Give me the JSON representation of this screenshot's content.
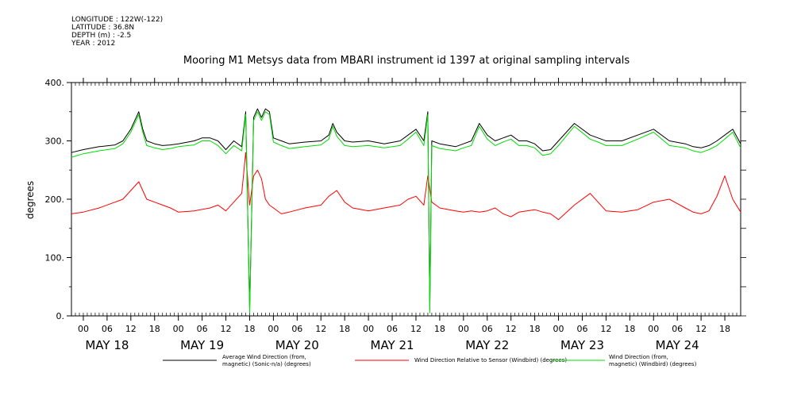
{
  "header": {
    "lines": [
      "LONGITUDE : 122W(-122)",
      "LATITUDE : 36.8N",
      "DEPTH (m) : -2.5",
      "YEAR : 2012"
    ]
  },
  "chart_data": {
    "type": "line",
    "title": "Mooring M1 Metsys data from MBARI instrument id 1397 at original sampling intervals",
    "ylabel": "degrees",
    "xlabel": "",
    "ylim": [
      0,
      400
    ],
    "yticks": [
      "0.",
      "100.",
      "200.",
      "300.",
      "400."
    ],
    "ytick_values": [
      0,
      100,
      200,
      300,
      400
    ],
    "xtick_labels": [
      "00",
      "06",
      "12",
      "18",
      "00",
      "06",
      "12",
      "18",
      "00",
      "06",
      "12",
      "18",
      "00",
      "06",
      "12",
      "18",
      "00",
      "06",
      "12",
      "18",
      "00",
      "06",
      "12",
      "18",
      "00",
      "06",
      "12",
      "18"
    ],
    "day_labels": [
      "MAY 18",
      "MAY 19",
      "MAY 20",
      "MAY 21",
      "MAY 22",
      "MAY 23",
      "MAY 24"
    ],
    "x_units": "hours since 2012-05-18 00:00",
    "xlim": [
      -3,
      166
    ],
    "grid": false,
    "legend_position": "bottom",
    "series": [
      {
        "name": "Average Wind Direction (from, magnetic) (Sonic-n/a) (degrees)",
        "legend_lines": [
          "Average Wind Direction (from,",
          "magnetic) (Sonic-n/a) (degrees)"
        ],
        "color": "#000000",
        "x": [
          -3,
          0,
          4,
          8,
          10,
          12,
          14,
          15,
          16,
          18,
          20,
          22,
          24,
          28,
          30,
          32,
          34,
          36,
          38,
          40,
          41,
          42,
          43,
          44,
          45,
          46,
          47,
          48,
          50,
          52,
          56,
          60,
          62,
          63,
          64,
          66,
          68,
          72,
          76,
          80,
          82,
          84,
          86,
          87,
          87.5,
          88,
          90,
          94,
          96,
          98,
          100,
          102,
          104,
          106,
          108,
          110,
          112,
          114,
          116,
          118,
          120,
          124,
          128,
          130,
          132,
          136,
          140,
          144,
          148,
          152,
          154,
          156,
          158,
          160,
          162,
          164,
          166
        ],
        "y": [
          280,
          285,
          290,
          293,
          300,
          320,
          350,
          320,
          300,
          295,
          292,
          293,
          295,
          300,
          305,
          305,
          300,
          285,
          300,
          290,
          350,
          10,
          340,
          355,
          340,
          355,
          350,
          305,
          300,
          295,
          298,
          300,
          310,
          330,
          315,
          300,
          298,
          300,
          295,
          300,
          310,
          320,
          300,
          350,
          10,
          300,
          295,
          290,
          295,
          300,
          330,
          310,
          300,
          305,
          310,
          300,
          300,
          295,
          283,
          285,
          300,
          330,
          310,
          305,
          300,
          300,
          310,
          320,
          300,
          295,
          290,
          288,
          292,
          300,
          310,
          320,
          295
        ]
      },
      {
        "name": "Wind Direction Relative to Sensor (Windbird) (degrees)",
        "legend_lines": [
          "Wind Direction Relative to Sensor (Windbird) (degrees)"
        ],
        "color": "#ff0000",
        "x": [
          -3,
          0,
          4,
          8,
          10,
          12,
          14,
          16,
          18,
          20,
          22,
          24,
          28,
          32,
          34,
          36,
          38,
          40,
          41,
          42,
          43,
          44,
          45,
          46,
          47,
          48,
          50,
          52,
          56,
          60,
          62,
          64,
          66,
          68,
          72,
          76,
          80,
          82,
          84,
          86,
          87,
          88,
          90,
          94,
          96,
          98,
          100,
          102,
          104,
          106,
          108,
          110,
          112,
          114,
          116,
          118,
          120,
          124,
          128,
          130,
          132,
          136,
          140,
          144,
          148,
          152,
          154,
          156,
          158,
          160,
          162,
          164,
          166
        ],
        "y": [
          175,
          178,
          185,
          195,
          200,
          215,
          230,
          200,
          195,
          190,
          185,
          178,
          180,
          185,
          190,
          180,
          195,
          210,
          280,
          190,
          240,
          250,
          235,
          200,
          190,
          185,
          175,
          178,
          185,
          190,
          205,
          215,
          195,
          185,
          180,
          185,
          190,
          200,
          205,
          190,
          240,
          195,
          185,
          180,
          178,
          180,
          178,
          180,
          185,
          175,
          170,
          178,
          180,
          182,
          178,
          175,
          165,
          190,
          210,
          195,
          180,
          178,
          182,
          195,
          200,
          185,
          178,
          175,
          180,
          205,
          240,
          200,
          178
        ]
      },
      {
        "name": "Wind Direction (from, magnetic) (Windbird) (degrees)",
        "legend_lines": [
          "Wind Direction (from,",
          "magnetic) (Windbird) (degrees)"
        ],
        "color": "#00dd00",
        "x": [
          -3,
          0,
          4,
          8,
          10,
          12,
          14,
          15,
          16,
          18,
          20,
          22,
          24,
          28,
          30,
          32,
          34,
          36,
          38,
          40,
          41,
          42,
          43,
          44,
          45,
          46,
          47,
          48,
          50,
          52,
          56,
          60,
          62,
          63,
          64,
          66,
          68,
          72,
          76,
          80,
          82,
          84,
          86,
          87,
          87.5,
          88,
          90,
          94,
          96,
          98,
          100,
          102,
          104,
          106,
          108,
          110,
          112,
          114,
          116,
          118,
          120,
          124,
          128,
          130,
          132,
          136,
          140,
          144,
          148,
          152,
          154,
          156,
          158,
          160,
          162,
          164,
          166
        ],
        "y": [
          272,
          278,
          283,
          287,
          295,
          315,
          345,
          315,
          292,
          288,
          285,
          287,
          290,
          293,
          300,
          300,
          292,
          278,
          292,
          283,
          345,
          5,
          335,
          350,
          335,
          350,
          345,
          298,
          292,
          287,
          290,
          293,
          303,
          325,
          308,
          292,
          290,
          292,
          288,
          292,
          303,
          315,
          292,
          345,
          5,
          292,
          287,
          283,
          288,
          292,
          325,
          303,
          292,
          298,
          303,
          292,
          292,
          288,
          275,
          278,
          292,
          325,
          303,
          298,
          292,
          292,
          303,
          315,
          292,
          288,
          283,
          280,
          285,
          292,
          303,
          315,
          288
        ]
      }
    ]
  }
}
